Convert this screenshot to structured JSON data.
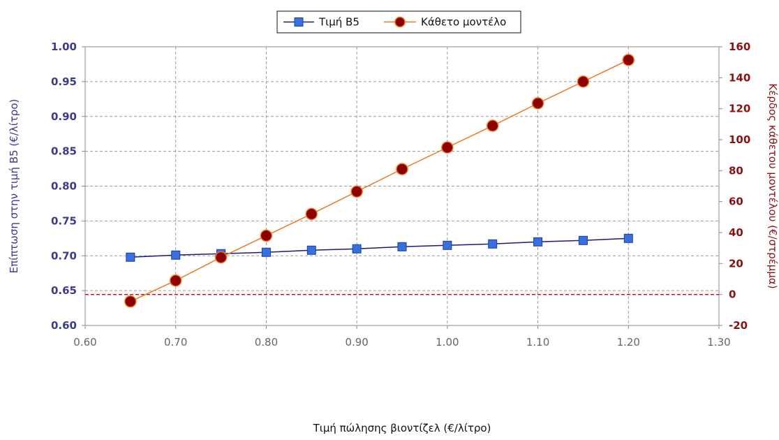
{
  "chart_data": {
    "type": "line",
    "xlabel": "Τιμή πώλησης βιοντίζελ (€/λίτρο)",
    "ylabel_left": "Επίπτωση στην τιμή Β5 (€/λίτρο)",
    "ylabel_right": "Κέρδος κάθετου μοντέλου (€/στρέμμα)",
    "xlim": [
      0.6,
      1.3
    ],
    "ylim_left": [
      0.6,
      1.0
    ],
    "ylim_right": [
      -20,
      160
    ],
    "x_ticks": [
      "0.60",
      "0.70",
      "0.80",
      "0.90",
      "1.00",
      "1.10",
      "1.20",
      "1.30"
    ],
    "y_left_ticks": [
      "0.60",
      "0.65",
      "0.70",
      "0.75",
      "0.80",
      "0.85",
      "0.90",
      "0.95",
      "1.00"
    ],
    "y_right_ticks": [
      "-20",
      "0",
      "20",
      "40",
      "60",
      "80",
      "100",
      "120",
      "140",
      "160"
    ],
    "grid": true,
    "legend_position": "top-center",
    "reference_line": {
      "axis": "right",
      "value": 0,
      "color": "#e00000",
      "style": "dashed"
    },
    "series": [
      {
        "name": "Τιμή Β5",
        "axis": "left",
        "color": "#1a1a80",
        "marker": "square",
        "marker_fill": "#3a6fe0",
        "x": [
          0.65,
          0.7,
          0.75,
          0.8,
          0.85,
          0.9,
          0.95,
          1.0,
          1.05,
          1.1,
          1.15,
          1.2
        ],
        "values": [
          0.698,
          0.701,
          0.703,
          0.705,
          0.708,
          0.71,
          0.713,
          0.715,
          0.717,
          0.72,
          0.722,
          0.725
        ]
      },
      {
        "name": "Κάθετο μοντέλο",
        "axis": "right",
        "color": "#f07820",
        "marker": "circle",
        "marker_fill": "#8b0000",
        "x": [
          0.65,
          0.7,
          0.75,
          0.8,
          0.85,
          0.9,
          0.95,
          1.0,
          1.05,
          1.1,
          1.15,
          1.2
        ],
        "values": [
          -4.5,
          9,
          24,
          38,
          52,
          66.5,
          81,
          95,
          109,
          123.5,
          137.5,
          151.5
        ]
      }
    ]
  }
}
